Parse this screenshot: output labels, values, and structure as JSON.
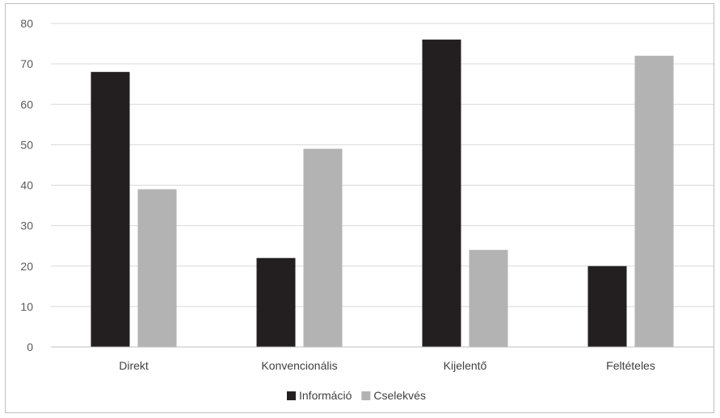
{
  "chart_data": {
    "type": "bar",
    "categories": [
      "Direkt",
      "Konvencionális",
      "Kijelentő",
      "Feltételes"
    ],
    "series": [
      {
        "name": "Információ",
        "values": [
          68,
          22,
          76,
          20
        ],
        "color": "#231f20"
      },
      {
        "name": "Cselekvés",
        "values": [
          39,
          49,
          24,
          72
        ],
        "color": "#b3b3b3"
      }
    ],
    "y_ticks": [
      "0",
      "10",
      "20",
      "30",
      "40",
      "50",
      "60",
      "70",
      "80"
    ],
    "ylim": [
      0,
      80
    ],
    "grid": true,
    "legend_position": "bottom",
    "title": "",
    "xlabel": "",
    "ylabel": ""
  }
}
